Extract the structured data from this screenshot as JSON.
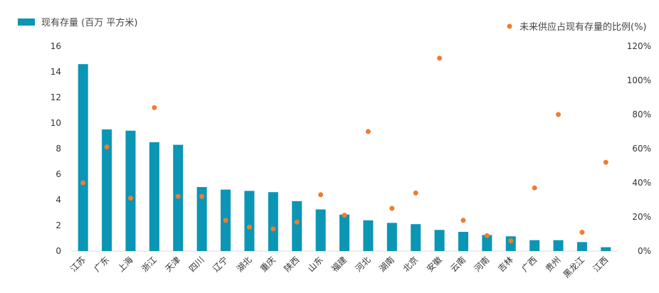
{
  "chart_data": {
    "type": "bar",
    "categories": [
      "江苏",
      "广东",
      "上海",
      "浙江",
      "天津",
      "四川",
      "辽宁",
      "湖北",
      "重庆",
      "陕西",
      "山东",
      "福建",
      "河北",
      "湖南",
      "北京",
      "安徽",
      "云南",
      "河南",
      "吉林",
      "广西",
      "贵州",
      "黑龙江",
      "江西"
    ],
    "series": [
      {
        "name": "现有存量 (百万 平方米)",
        "type": "bar",
        "axis": "left",
        "color": "#0a96b4",
        "values": [
          14.6,
          9.5,
          9.4,
          8.5,
          8.3,
          5.0,
          4.8,
          4.7,
          4.6,
          3.9,
          3.25,
          2.85,
          2.4,
          2.2,
          2.1,
          1.65,
          1.5,
          1.25,
          1.15,
          0.85,
          0.85,
          0.7,
          0.3
        ]
      },
      {
        "name": "未来供应占现有存量的比例(%)",
        "type": "scatter",
        "axis": "right",
        "color": "#ed7d31",
        "values": [
          40,
          61,
          31,
          84,
          32,
          32,
          18,
          14,
          13,
          17,
          33,
          21,
          70,
          25,
          34,
          113,
          18,
          9,
          6,
          37,
          80,
          11,
          52
        ]
      }
    ],
    "y_left": {
      "min": 0,
      "max": 16,
      "ticks": [
        "0",
        "2",
        "4",
        "6",
        "8",
        "10",
        "12",
        "14",
        "16"
      ]
    },
    "y_right": {
      "min": 0,
      "max": 120,
      "ticks": [
        "0%",
        "20%",
        "40%",
        "60%",
        "80%",
        "100%",
        "120%"
      ]
    },
    "grid": false,
    "legend": {
      "bar_label": "现有存量 (百万 平方米)",
      "dot_label": "未来供应占现有存量的比例(%)",
      "bar_position": "top-left",
      "dot_position": "top-right"
    }
  }
}
